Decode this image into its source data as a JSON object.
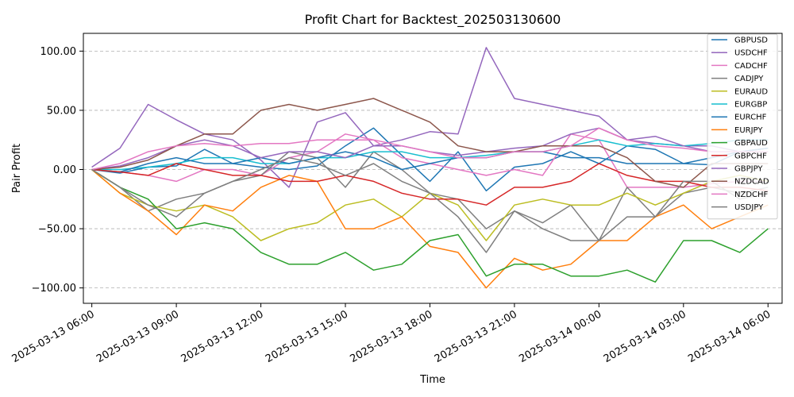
{
  "chart_data": {
    "type": "line",
    "title": "Profit Chart for Backtest_202503130600",
    "xlabel": "Time",
    "ylabel": "Pair Profit",
    "xlim": [
      -0.3,
      24.5
    ],
    "ylim": [
      -113,
      115
    ],
    "yticks": [
      100,
      50,
      0,
      -50,
      -100
    ],
    "ytick_labels": [
      "100.00",
      "50.00",
      "0.00",
      "−50.00",
      "−100.00"
    ],
    "xticks": [
      0,
      3,
      6,
      9,
      12,
      15,
      18,
      21,
      24
    ],
    "xtick_labels": [
      "2025-03-13 06:00",
      "2025-03-13 09:00",
      "2025-03-13 12:00",
      "2025-03-13 15:00",
      "2025-03-13 18:00",
      "2025-03-13 21:00",
      "2025-03-14 00:00",
      "2025-03-14 03:00",
      "2025-03-14 06:00"
    ],
    "x_unit": "hours since 2025-03-13 06:00",
    "grid": "y-dashed",
    "legend_position": "top-right",
    "series": [
      {
        "name": "GBPUSD",
        "color": "#1f77b4",
        "x": [
          0,
          1,
          2,
          3,
          4,
          5,
          6,
          7,
          8,
          9,
          10,
          11,
          12,
          13,
          14,
          15,
          16,
          17,
          18,
          19,
          20,
          21,
          22,
          23,
          24
        ],
        "values": [
          0,
          -3,
          2,
          3,
          17,
          5,
          2,
          0,
          3,
          20,
          35,
          12,
          -10,
          15,
          -18,
          2,
          5,
          15,
          5,
          20,
          17,
          5,
          4,
          15,
          18
        ]
      },
      {
        "name": "USDCHF",
        "color": "#9467bd",
        "x": [
          0,
          1,
          2,
          3,
          4,
          5,
          6,
          7,
          8,
          9,
          10,
          11,
          12,
          13,
          14,
          15,
          16,
          17,
          18,
          19,
          20,
          21,
          22,
          23,
          24
        ],
        "values": [
          2,
          18,
          55,
          42,
          30,
          25,
          8,
          -15,
          40,
          48,
          20,
          25,
          32,
          30,
          103,
          60,
          55,
          50,
          45,
          25,
          22,
          20,
          20,
          15,
          18
        ]
      },
      {
        "name": "CADCHF",
        "color": "#e377c2",
        "x": [
          0,
          1,
          2,
          3,
          4,
          5,
          6,
          7,
          8,
          9,
          10,
          11,
          12,
          13,
          14,
          15,
          16,
          17,
          18,
          19,
          20,
          21,
          22,
          23,
          24
        ],
        "values": [
          0,
          -2,
          -5,
          -10,
          0,
          0,
          -5,
          10,
          15,
          30,
          25,
          10,
          5,
          0,
          -5,
          0,
          -5,
          30,
          25,
          -15,
          -15,
          -15,
          -12,
          -10,
          -10
        ]
      },
      {
        "name": "CADJPY",
        "color": "#7f7f7f",
        "x": [
          0,
          1,
          2,
          3,
          4,
          5,
          6,
          7,
          8,
          9,
          10,
          11,
          12,
          13,
          14,
          15,
          16,
          17,
          18,
          19,
          20,
          21,
          22,
          23,
          24
        ],
        "values": [
          0,
          -15,
          -35,
          -25,
          -20,
          -10,
          -5,
          15,
          10,
          -15,
          15,
          0,
          -20,
          -25,
          -50,
          -35,
          -45,
          -30,
          -60,
          -15,
          -40,
          -20,
          -15,
          -20,
          -15
        ]
      },
      {
        "name": "EURAUD",
        "color": "#bcbd22",
        "x": [
          0,
          1,
          2,
          3,
          4,
          5,
          6,
          7,
          8,
          9,
          10,
          11,
          12,
          13,
          14,
          15,
          16,
          17,
          18,
          19,
          20,
          21,
          22,
          23,
          24
        ],
        "values": [
          0,
          -20,
          -30,
          -35,
          -30,
          -40,
          -60,
          -50,
          -45,
          -30,
          -25,
          -40,
          -20,
          -30,
          -60,
          -30,
          -25,
          -30,
          -30,
          -20,
          -30,
          -20,
          -10,
          -5,
          -10
        ]
      },
      {
        "name": "EURGBP",
        "color": "#17becf",
        "x": [
          0,
          1,
          2,
          3,
          4,
          5,
          6,
          7,
          8,
          9,
          10,
          11,
          12,
          13,
          14,
          15,
          16,
          17,
          18,
          19,
          20,
          21,
          22,
          23,
          24
        ],
        "values": [
          0,
          0,
          2,
          5,
          10,
          10,
          5,
          5,
          10,
          10,
          15,
          15,
          10,
          10,
          12,
          15,
          15,
          20,
          25,
          20,
          22,
          20,
          22,
          25,
          25
        ]
      },
      {
        "name": "EURCHF",
        "color": "#1f77b4",
        "x": [
          0,
          1,
          2,
          3,
          4,
          5,
          6,
          7,
          8,
          9,
          10,
          11,
          12,
          13,
          14,
          15,
          16,
          17,
          18,
          19,
          20,
          21,
          22,
          23,
          24
        ],
        "values": [
          0,
          -2,
          5,
          10,
          5,
          5,
          10,
          5,
          10,
          15,
          10,
          0,
          5,
          10,
          10,
          15,
          15,
          10,
          10,
          5,
          5,
          5,
          10,
          15,
          18
        ]
      },
      {
        "name": "EURJPY",
        "color": "#ff7f0e",
        "x": [
          0,
          1,
          2,
          3,
          4,
          5,
          6,
          7,
          8,
          9,
          10,
          11,
          12,
          13,
          14,
          15,
          16,
          17,
          18,
          19,
          20,
          21,
          22,
          23,
          24
        ],
        "values": [
          0,
          -20,
          -35,
          -55,
          -30,
          -35,
          -15,
          -5,
          -10,
          -50,
          -50,
          -40,
          -65,
          -70,
          -100,
          -75,
          -85,
          -80,
          -60,
          -60,
          -40,
          -30,
          -50,
          -40,
          -30
        ]
      },
      {
        "name": "GBPAUD",
        "color": "#2ca02c",
        "x": [
          0,
          1,
          2,
          3,
          4,
          5,
          6,
          7,
          8,
          9,
          10,
          11,
          12,
          13,
          14,
          15,
          16,
          17,
          18,
          19,
          20,
          21,
          22,
          23,
          24
        ],
        "values": [
          0,
          -15,
          -25,
          -50,
          -45,
          -50,
          -70,
          -80,
          -80,
          -70,
          -85,
          -80,
          -60,
          -55,
          -90,
          -80,
          -80,
          -90,
          -90,
          -85,
          -95,
          -60,
          -60,
          -70,
          -50
        ]
      },
      {
        "name": "GBPCHF",
        "color": "#d62728",
        "x": [
          0,
          1,
          2,
          3,
          4,
          5,
          6,
          7,
          8,
          9,
          10,
          11,
          12,
          13,
          14,
          15,
          16,
          17,
          18,
          19,
          20,
          21,
          22,
          23,
          24
        ],
        "values": [
          0,
          -2,
          -5,
          5,
          0,
          -5,
          -5,
          -10,
          -10,
          -5,
          -10,
          -20,
          -25,
          -25,
          -30,
          -15,
          -15,
          -10,
          5,
          -5,
          -10,
          -10,
          -15,
          -15,
          -18
        ]
      },
      {
        "name": "GBPJPY",
        "color": "#9467bd",
        "x": [
          0,
          1,
          2,
          3,
          4,
          5,
          6,
          7,
          8,
          9,
          10,
          11,
          12,
          13,
          14,
          15,
          16,
          17,
          18,
          19,
          20,
          21,
          22,
          23,
          24
        ],
        "values": [
          0,
          3,
          10,
          20,
          25,
          20,
          10,
          15,
          15,
          10,
          20,
          20,
          15,
          12,
          15,
          18,
          20,
          30,
          35,
          25,
          28,
          20,
          15,
          15,
          15
        ]
      },
      {
        "name": "NZDCAD",
        "color": "#8c564b",
        "x": [
          0,
          1,
          2,
          3,
          4,
          5,
          6,
          7,
          8,
          9,
          10,
          11,
          12,
          13,
          14,
          15,
          16,
          17,
          18,
          19,
          20,
          21,
          22,
          23,
          24
        ],
        "values": [
          0,
          2,
          8,
          20,
          30,
          30,
          50,
          55,
          50,
          55,
          60,
          50,
          40,
          20,
          15,
          15,
          20,
          20,
          20,
          10,
          -10,
          -15,
          5,
          5,
          5
        ]
      },
      {
        "name": "NZDCHF",
        "color": "#e377c2",
        "x": [
          0,
          1,
          2,
          3,
          4,
          5,
          6,
          7,
          8,
          9,
          10,
          11,
          12,
          13,
          14,
          15,
          16,
          17,
          18,
          19,
          20,
          21,
          22,
          23,
          24
        ],
        "values": [
          0,
          5,
          15,
          20,
          22,
          20,
          22,
          22,
          25,
          25,
          25,
          20,
          15,
          10,
          10,
          15,
          15,
          20,
          35,
          25,
          20,
          18,
          15,
          15,
          15
        ]
      },
      {
        "name": "USDJPY",
        "color": "#7f7f7f",
        "x": [
          0,
          1,
          2,
          3,
          4,
          5,
          6,
          7,
          8,
          9,
          10,
          11,
          12,
          13,
          14,
          15,
          16,
          17,
          18,
          19,
          20,
          21,
          22,
          23,
          24
        ],
        "values": [
          0,
          -15,
          -30,
          -40,
          -20,
          -10,
          0,
          10,
          5,
          -5,
          5,
          -10,
          -20,
          -40,
          -70,
          -35,
          -50,
          -60,
          -60,
          -40,
          -40,
          -10,
          -10,
          -25,
          -20
        ]
      }
    ]
  }
}
